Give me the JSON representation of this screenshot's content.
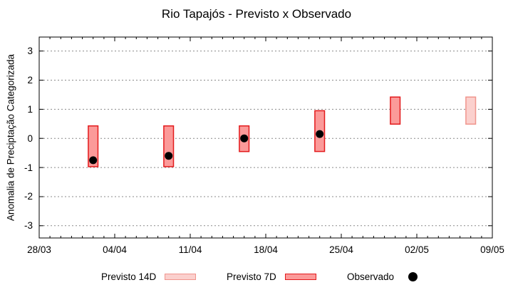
{
  "title": "Rio Tapajós - Previsto x Observado",
  "chart_data": {
    "type": "bar",
    "subtype": "floating-range-bars-with-scatter-overlay",
    "title": "Rio Tapajós - Previsto x Observado",
    "xlabel": "",
    "ylabel": "Anomalia de Preciptação Categorizada",
    "ylim": [
      -3.42,
      3.48
    ],
    "x_day_range": [
      0,
      42
    ],
    "x_tick_labels": [
      "28/03",
      "04/04",
      "11/04",
      "18/04",
      "25/04",
      "02/05",
      "09/05"
    ],
    "x_tick_days": [
      0,
      7,
      14,
      21,
      28,
      35,
      42
    ],
    "x_minor_tick_every_days": 1,
    "y_ticks": [
      3,
      2,
      1,
      0,
      -1,
      -2,
      -3
    ],
    "y_tick_labels": [
      "3",
      "2",
      "1",
      "0",
      "-1",
      "-2",
      "-3"
    ],
    "grid": "horizontal dotted lines at integer y values",
    "grid_color": "#8a8a8a",
    "legend_position": "bottom",
    "bar_width_days": 0.9,
    "series": [
      {
        "name": "Previsto 14D",
        "type": "range-bar",
        "fill": "#fbd0cd",
        "stroke": "#f0958d",
        "bars": [
          {
            "date": "07/05",
            "day": 40,
            "low": 0.49,
            "high": 1.42
          }
        ]
      },
      {
        "name": "Previsto 7D",
        "type": "range-bar",
        "fill": "#fb9a99",
        "stroke": "#e31a1c",
        "bars": [
          {
            "date": "02/04",
            "day": 5,
            "low": -0.97,
            "high": 0.43
          },
          {
            "date": "09/04",
            "day": 12,
            "low": -0.97,
            "high": 0.43
          },
          {
            "date": "16/04",
            "day": 19,
            "low": -0.45,
            "high": 0.43
          },
          {
            "date": "23/04",
            "day": 26,
            "low": -0.45,
            "high": 0.95
          },
          {
            "date": "30/04",
            "day": 33,
            "low": 0.49,
            "high": 1.42
          }
        ]
      },
      {
        "name": "Observado",
        "type": "scatter",
        "color": "#000000",
        "points": [
          {
            "date": "02/04",
            "day": 5,
            "value": -0.75
          },
          {
            "date": "09/04",
            "day": 12,
            "value": -0.6
          },
          {
            "date": "16/04",
            "day": 19,
            "value": 0.0
          },
          {
            "date": "23/04",
            "day": 26,
            "value": 0.15
          }
        ]
      }
    ]
  }
}
